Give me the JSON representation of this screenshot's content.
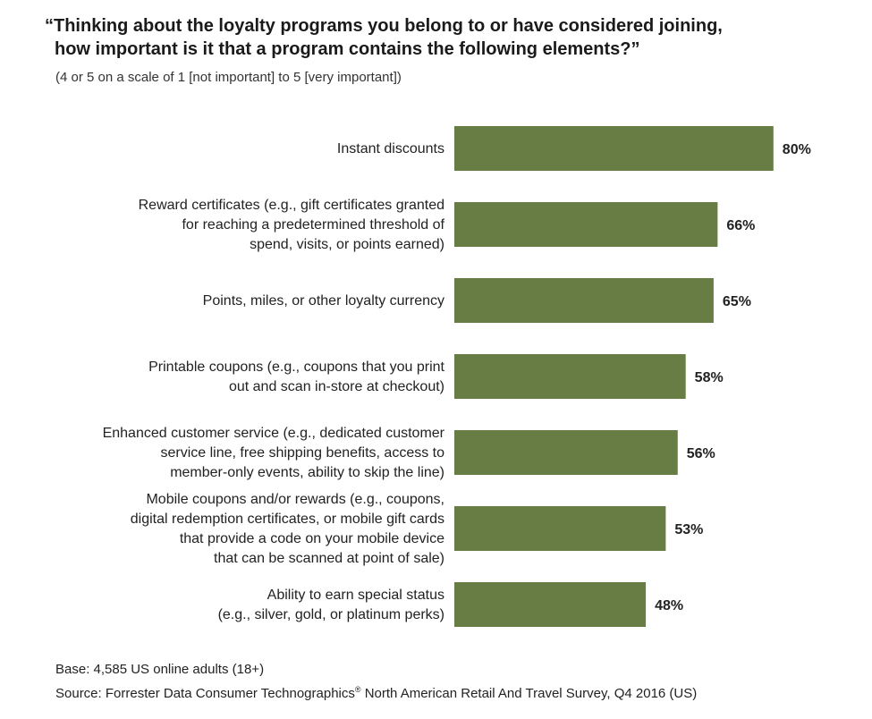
{
  "title_line1": "“Thinking about the loyalty programs you belong to or have considered joining,",
  "title_line2": "how important is it that a program contains the following elements?”",
  "subtitle": "(4 or 5 on a scale of 1 [not important] to 5 [very important])",
  "footer": {
    "base": "Base: 4,585 US online adults (18+)",
    "source_pre": "Source: Forrester Data Consumer Technographics",
    "source_mark": "®",
    "source_post": " North American Retail And Travel Survey, Q4 2016 (US)"
  },
  "chart_data": {
    "type": "bar",
    "orientation": "horizontal",
    "categories": [
      [
        "Instant discounts"
      ],
      [
        "Reward certificates (e.g., gift certificates granted",
        "for reaching a predetermined threshold of",
        "spend, visits, or points earned)"
      ],
      [
        "Points, miles, or other loyalty currency"
      ],
      [
        "Printable coupons (e.g., coupons that you print",
        "out and scan in-store at checkout)"
      ],
      [
        "Enhanced customer service (e.g., dedicated customer",
        "service line, free shipping benefits, access to",
        "member-only events, ability to skip the line)"
      ],
      [
        "Mobile coupons and/or rewards (e.g., coupons,",
        "digital redemption certificates, or mobile gift cards",
        "that provide a code on your mobile device",
        "that can be scanned at point of sale)"
      ],
      [
        "Ability to earn special status",
        "(e.g., silver, gold, or platinum perks)"
      ]
    ],
    "values": [
      80,
      66,
      65,
      58,
      56,
      53,
      48
    ],
    "value_labels": [
      "80%",
      "66%",
      "65%",
      "58%",
      "56%",
      "53%",
      "48%"
    ],
    "unit": "%",
    "xlim": [
      0,
      100
    ],
    "grid": false,
    "bar_color": "#677d44"
  }
}
